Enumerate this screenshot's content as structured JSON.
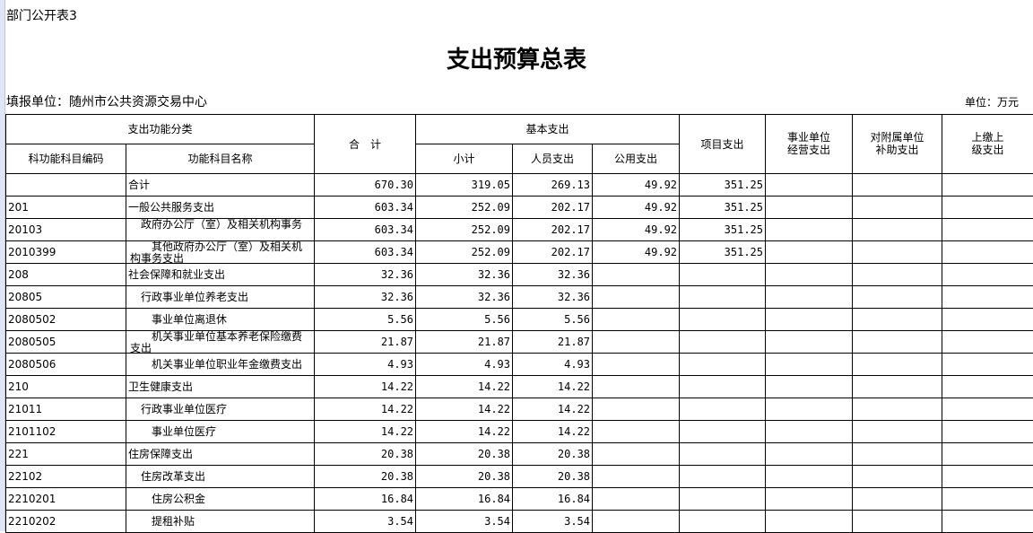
{
  "sheet_label": "部门公开表3",
  "title": "支出预算总表",
  "filling_unit": "填报单位：随州市公共资源交易中心",
  "unit": "单位：万元",
  "headers": {
    "func_class": "支出功能分类",
    "total": "合　计",
    "basic": "基本支出",
    "project": "项目支出",
    "business": "事业单位\n经营支出",
    "subsidy": "对附属单位\n补助支出",
    "upper": "上缴上\n级支出",
    "code": "科功能科目编码",
    "name": "功能科目名称",
    "subtotal": "小计",
    "personnel": "人员支出",
    "public": "公用支出"
  },
  "rows": [
    {
      "code": "",
      "name": "合计",
      "level": 0,
      "total": "670.30",
      "subtotal": "319.05",
      "personnel": "269.13",
      "public": "49.92",
      "project": "351.25"
    },
    {
      "code": "201",
      "name": "一般公共服务支出",
      "level": 0,
      "total": "603.34",
      "subtotal": "252.09",
      "personnel": "202.17",
      "public": "49.92",
      "project": "351.25"
    },
    {
      "code": "20103",
      "name": "政府办公厅（室）及相关机构事务",
      "level": 1,
      "total": "603.34",
      "subtotal": "252.09",
      "personnel": "202.17",
      "public": "49.92",
      "project": "351.25"
    },
    {
      "code": "2010399",
      "name": "其他政府办公厅（室）及相关机构事务支出",
      "level": 2,
      "total": "603.34",
      "subtotal": "252.09",
      "personnel": "202.17",
      "public": "49.92",
      "project": "351.25"
    },
    {
      "code": "208",
      "name": "社会保障和就业支出",
      "level": 0,
      "total": "32.36",
      "subtotal": "32.36",
      "personnel": "32.36",
      "public": "",
      "project": ""
    },
    {
      "code": "20805",
      "name": "行政事业单位养老支出",
      "level": 1,
      "total": "32.36",
      "subtotal": "32.36",
      "personnel": "32.36",
      "public": "",
      "project": ""
    },
    {
      "code": "2080502",
      "name": "事业单位离退休",
      "level": 2,
      "total": "5.56",
      "subtotal": "5.56",
      "personnel": "5.56",
      "public": "",
      "project": ""
    },
    {
      "code": "2080505",
      "name": "机关事业单位基本养老保险缴费支出",
      "level": 2,
      "total": "21.87",
      "subtotal": "21.87",
      "personnel": "21.87",
      "public": "",
      "project": ""
    },
    {
      "code": "2080506",
      "name": "机关事业单位职业年金缴费支出",
      "level": 2,
      "total": "4.93",
      "subtotal": "4.93",
      "personnel": "4.93",
      "public": "",
      "project": ""
    },
    {
      "code": "210",
      "name": "卫生健康支出",
      "level": 0,
      "total": "14.22",
      "subtotal": "14.22",
      "personnel": "14.22",
      "public": "",
      "project": ""
    },
    {
      "code": "21011",
      "name": "行政事业单位医疗",
      "level": 1,
      "total": "14.22",
      "subtotal": "14.22",
      "personnel": "14.22",
      "public": "",
      "project": ""
    },
    {
      "code": "2101102",
      "name": "事业单位医疗",
      "level": 2,
      "total": "14.22",
      "subtotal": "14.22",
      "personnel": "14.22",
      "public": "",
      "project": ""
    },
    {
      "code": "221",
      "name": "住房保障支出",
      "level": 0,
      "total": "20.38",
      "subtotal": "20.38",
      "personnel": "20.38",
      "public": "",
      "project": ""
    },
    {
      "code": "22102",
      "name": "住房改革支出",
      "level": 1,
      "total": "20.38",
      "subtotal": "20.38",
      "personnel": "20.38",
      "public": "",
      "project": ""
    },
    {
      "code": "2210201",
      "name": "住房公积金",
      "level": 2,
      "total": "16.84",
      "subtotal": "16.84",
      "personnel": "16.84",
      "public": "",
      "project": ""
    },
    {
      "code": "2210202",
      "name": "提租补贴",
      "level": 2,
      "total": "3.54",
      "subtotal": "3.54",
      "personnel": "3.54",
      "public": "",
      "project": ""
    }
  ]
}
